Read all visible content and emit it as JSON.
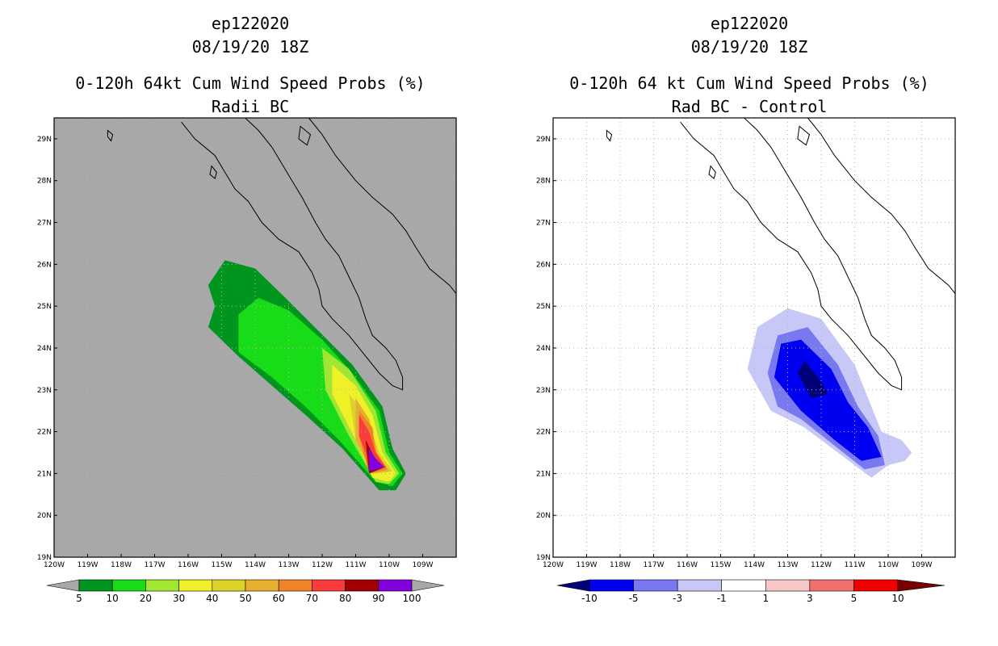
{
  "left": {
    "title1": "ep122020",
    "title2": "08/19/20 18Z",
    "title3": "0-120h 64kt Cum Wind Speed Probs (%)",
    "title4": "Radii BC"
  },
  "right": {
    "title1": "ep122020",
    "title2": "08/19/20 18Z",
    "title3": "0-120h 64 kt Cum Wind Speed Probs (%)",
    "title4": "Rad BC - Control"
  },
  "chart_data": [
    {
      "type": "heatmap",
      "title": "0-120h 64kt Cum Wind Speed Probs (%) Radii BC",
      "storm": "ep122020",
      "valid": "08/19/20 18Z",
      "xlim": [
        -120,
        -108
      ],
      "ylim": [
        19,
        29.5
      ],
      "x_ticks": [
        "120W",
        "119W",
        "118W",
        "117W",
        "116W",
        "115W",
        "114W",
        "113W",
        "112W",
        "111W",
        "110W",
        "109W"
      ],
      "y_ticks": [
        "19N",
        "20N",
        "21N",
        "22N",
        "23N",
        "24N",
        "25N",
        "26N",
        "27N",
        "28N",
        "29N"
      ],
      "background": "#a8a8a8",
      "levels": [
        {
          "label": "5",
          "color": "#00961e"
        },
        {
          "label": "10",
          "color": "#18dc18"
        },
        {
          "label": "20",
          "color": "#a0e632"
        },
        {
          "label": "30",
          "color": "#f0f028"
        },
        {
          "label": "40",
          "color": "#dcd22a"
        },
        {
          "label": "50",
          "color": "#e6af2d"
        },
        {
          "label": "60",
          "color": "#f08228"
        },
        {
          "label": "70",
          "color": "#fa3c3c"
        },
        {
          "label": "80",
          "color": "#a00000"
        },
        {
          "label": "90",
          "color": "#8200dc"
        },
        {
          "label": "100",
          "color": ""
        }
      ],
      "contours": [
        {
          "level": 5,
          "points": [
            [
              -115.4,
              25.5
            ],
            [
              -114.9,
              26.1
            ],
            [
              -114.0,
              25.9
            ],
            [
              -113.1,
              25.2
            ],
            [
              -112.1,
              24.4
            ],
            [
              -111.1,
              23.6
            ],
            [
              -110.2,
              22.6
            ],
            [
              -109.9,
              21.6
            ],
            [
              -109.5,
              21.0
            ],
            [
              -109.8,
              20.6
            ],
            [
              -110.3,
              20.6
            ],
            [
              -111.4,
              21.6
            ],
            [
              -112.5,
              22.4
            ],
            [
              -113.5,
              23.1
            ],
            [
              -114.5,
              23.8
            ],
            [
              -115.4,
              24.5
            ],
            [
              -115.2,
              25.0
            ]
          ]
        },
        {
          "level": 10,
          "points": [
            [
              -114.5,
              24.8
            ],
            [
              -113.9,
              25.2
            ],
            [
              -113.0,
              24.9
            ],
            [
              -112.0,
              24.2
            ],
            [
              -111.1,
              23.4
            ],
            [
              -110.3,
              22.5
            ],
            [
              -110.0,
              21.5
            ],
            [
              -109.6,
              21.0
            ],
            [
              -109.9,
              20.7
            ],
            [
              -110.4,
              20.8
            ],
            [
              -111.5,
              21.8
            ],
            [
              -112.5,
              22.6
            ],
            [
              -113.5,
              23.3
            ],
            [
              -114.5,
              23.9
            ]
          ]
        },
        {
          "level": 20,
          "points": [
            [
              -112.0,
              24.0
            ],
            [
              -111.2,
              23.5
            ],
            [
              -110.4,
              22.5
            ],
            [
              -110.1,
              21.5
            ],
            [
              -109.7,
              21.0
            ],
            [
              -110.0,
              20.75
            ],
            [
              -110.4,
              20.8
            ],
            [
              -111.2,
              21.9
            ],
            [
              -111.9,
              23.0
            ]
          ]
        },
        {
          "level": 30,
          "points": [
            [
              -111.7,
              23.6
            ],
            [
              -111.0,
              23.1
            ],
            [
              -110.5,
              22.4
            ],
            [
              -110.2,
              21.5
            ],
            [
              -109.8,
              21.0
            ],
            [
              -110.0,
              20.8
            ],
            [
              -110.5,
              20.9
            ],
            [
              -111.0,
              21.8
            ],
            [
              -111.7,
              22.9
            ]
          ]
        },
        {
          "level": 40,
          "points": [
            [
              -111.2,
              22.9
            ],
            [
              -110.7,
              22.4
            ],
            [
              -110.3,
              21.5
            ],
            [
              -109.9,
              21.05
            ],
            [
              -110.5,
              21.0
            ],
            [
              -111.0,
              21.8
            ]
          ]
        },
        {
          "level": 50,
          "points": [
            [
              -111.0,
              22.8
            ],
            [
              -110.6,
              22.3
            ],
            [
              -110.35,
              21.5
            ],
            [
              -110.0,
              21.05
            ],
            [
              -110.5,
              21.0
            ],
            [
              -111.0,
              21.8
            ]
          ]
        },
        {
          "level": 60,
          "points": [
            [
              -110.9,
              22.5
            ],
            [
              -110.5,
              22.1
            ],
            [
              -110.4,
              21.5
            ],
            [
              -110.05,
              21.1
            ],
            [
              -110.6,
              21.0
            ],
            [
              -110.9,
              21.9
            ]
          ]
        },
        {
          "level": 70,
          "points": [
            [
              -110.9,
              22.4
            ],
            [
              -110.6,
              22.0
            ],
            [
              -110.4,
              21.5
            ],
            [
              -110.1,
              21.15
            ],
            [
              -110.6,
              21.0
            ],
            [
              -110.7,
              21.5
            ],
            [
              -110.9,
              21.9
            ]
          ]
        },
        {
          "level": 80,
          "points": [
            [
              -110.7,
              21.8
            ],
            [
              -110.45,
              21.4
            ],
            [
              -110.15,
              21.15
            ],
            [
              -110.6,
              21.0
            ]
          ]
        },
        {
          "level": 90,
          "points": [
            [
              -110.6,
              21.6
            ],
            [
              -110.4,
              21.35
            ],
            [
              -110.15,
              21.15
            ],
            [
              -110.6,
              21.05
            ]
          ]
        }
      ]
    },
    {
      "type": "heatmap",
      "title": "0-120h 64 kt Cum Wind Speed Probs (%) Rad BC - Control",
      "storm": "ep122020",
      "valid": "08/19/20 18Z",
      "xlim": [
        -120,
        -108
      ],
      "ylim": [
        19,
        29.5
      ],
      "x_ticks": [
        "120W",
        "119W",
        "118W",
        "117W",
        "116W",
        "115W",
        "114W",
        "113W",
        "112W",
        "111W",
        "110W",
        "109W"
      ],
      "y_ticks": [
        "19N",
        "20N",
        "21N",
        "22N",
        "23N",
        "24N",
        "25N",
        "26N",
        "27N",
        "28N",
        "29N"
      ],
      "background": "#ffffff",
      "levels": [
        {
          "label": "-10",
          "color": "#000078"
        },
        {
          "label": "-5",
          "color": "#0000f0"
        },
        {
          "label": "-3",
          "color": "#7878f0"
        },
        {
          "label": "-1",
          "color": "#c8c8f8"
        },
        {
          "label": "1",
          "color": "#ffffff"
        },
        {
          "label": "3",
          "color": "#f8c8c8"
        },
        {
          "label": "5",
          "color": "#f07070"
        },
        {
          "label": "10",
          "color": "#f00000"
        },
        {
          "label": "",
          "color": "#780000"
        }
      ],
      "contours": [
        {
          "level": -1,
          "points": [
            [
              -114.2,
              23.5
            ],
            [
              -113.9,
              24.5
            ],
            [
              -113.0,
              24.95
            ],
            [
              -112.0,
              24.7
            ],
            [
              -111.0,
              23.6
            ],
            [
              -110.2,
              22.0
            ],
            [
              -109.6,
              21.8
            ],
            [
              -109.3,
              21.5
            ],
            [
              -109.5,
              21.3
            ],
            [
              -110.0,
              21.2
            ],
            [
              -110.5,
              20.9
            ],
            [
              -111.5,
              21.5
            ],
            [
              -112.5,
              22.1
            ],
            [
              -113.5,
              22.5
            ]
          ]
        },
        {
          "level": -3,
          "points": [
            [
              -113.6,
              23.4
            ],
            [
              -113.3,
              24.3
            ],
            [
              -112.4,
              24.5
            ],
            [
              -111.5,
              23.6
            ],
            [
              -110.9,
              22.6
            ],
            [
              -110.3,
              21.9
            ],
            [
              -110.1,
              21.2
            ],
            [
              -110.7,
              21.1
            ],
            [
              -111.5,
              21.6
            ],
            [
              -112.6,
              22.3
            ],
            [
              -113.3,
              22.6
            ]
          ]
        },
        {
          "level": -5,
          "points": [
            [
              -113.4,
              23.3
            ],
            [
              -113.2,
              24.1
            ],
            [
              -112.6,
              24.2
            ],
            [
              -111.7,
              23.5
            ],
            [
              -111.2,
              22.7
            ],
            [
              -110.6,
              22.1
            ],
            [
              -110.2,
              21.4
            ],
            [
              -110.8,
              21.3
            ],
            [
              -111.6,
              21.8
            ],
            [
              -112.6,
              22.5
            ]
          ]
        },
        {
          "level": -10,
          "points": [
            [
              -112.7,
              23.4
            ],
            [
              -112.5,
              23.7
            ],
            [
              -112.0,
              23.2
            ],
            [
              -111.8,
              22.9
            ],
            [
              -112.3,
              22.8
            ]
          ]
        }
      ]
    }
  ]
}
